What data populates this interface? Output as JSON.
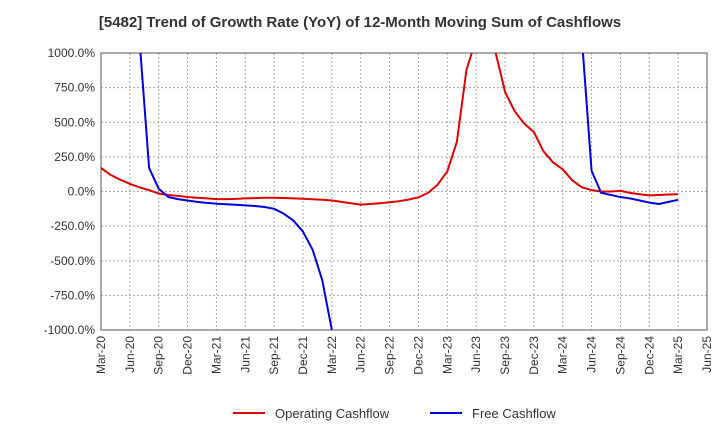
{
  "chart_data": {
    "type": "line",
    "title": "[5482]  Trend of Growth Rate (YoY) of 12-Month Moving Sum of Cashflows",
    "xlabel": "",
    "ylabel": "",
    "ylim": [
      -1000,
      1000
    ],
    "y_ticks": [
      "1000.0%",
      "750.0%",
      "500.0%",
      "250.0%",
      "0.0%",
      "-250.0%",
      "-500.0%",
      "-750.0%",
      "-1000.0%"
    ],
    "y_tick_values": [
      1000,
      750,
      500,
      250,
      0,
      -250,
      -500,
      -750,
      -1000
    ],
    "x_ticks": [
      "Mar-20",
      "Jun-20",
      "Sep-20",
      "Dec-20",
      "Mar-21",
      "Jun-21",
      "Sep-21",
      "Dec-21",
      "Mar-22",
      "Jun-22",
      "Sep-22",
      "Dec-22",
      "Mar-23",
      "Jun-23",
      "Sep-23",
      "Dec-23",
      "Mar-24",
      "Jun-24",
      "Sep-24",
      "Dec-24",
      "Mar-25",
      "Jun-25"
    ],
    "grid": true,
    "legend_position": "bottom",
    "series": [
      {
        "name": "Operating Cashflow",
        "color": "#e00000",
        "points": [
          [
            "Mar-20",
            170
          ],
          [
            "Apr-20",
            120
          ],
          [
            "May-20",
            85
          ],
          [
            "Jun-20",
            55
          ],
          [
            "Jul-20",
            30
          ],
          [
            "Aug-20",
            10
          ],
          [
            "Sep-20",
            -15
          ],
          [
            "Oct-20",
            -25
          ],
          [
            "Nov-20",
            -32
          ],
          [
            "Dec-20",
            -40
          ],
          [
            "Jan-21",
            -45
          ],
          [
            "Feb-21",
            -50
          ],
          [
            "Mar-21",
            -55
          ],
          [
            "Apr-21",
            -55
          ],
          [
            "May-21",
            -53
          ],
          [
            "Jun-21",
            -50
          ],
          [
            "Jul-21",
            -48
          ],
          [
            "Aug-21",
            -45
          ],
          [
            "Sep-21",
            -45
          ],
          [
            "Oct-21",
            -47
          ],
          [
            "Nov-21",
            -50
          ],
          [
            "Dec-21",
            -52
          ],
          [
            "Jan-22",
            -56
          ],
          [
            "Feb-22",
            -60
          ],
          [
            "Mar-22",
            -65
          ],
          [
            "Apr-22",
            -75
          ],
          [
            "May-22",
            -85
          ],
          [
            "Jun-22",
            -95
          ],
          [
            "Jul-22",
            -90
          ],
          [
            "Aug-22",
            -85
          ],
          [
            "Sep-22",
            -78
          ],
          [
            "Oct-22",
            -70
          ],
          [
            "Nov-22",
            -58
          ],
          [
            "Dec-22",
            -42
          ],
          [
            "Jan-23",
            -10
          ],
          [
            "Feb-23",
            50
          ],
          [
            "Mar-23",
            145
          ],
          [
            "Apr-23",
            360
          ],
          [
            "May-23",
            880
          ],
          [
            "Jun-23",
            1100
          ],
          [
            "Jul-23",
            1300
          ],
          [
            "Aug-23",
            1010
          ],
          [
            "Sep-23",
            720
          ],
          [
            "Oct-23",
            580
          ],
          [
            "Nov-23",
            490
          ],
          [
            "Dec-23",
            430
          ],
          [
            "Jan-24",
            290
          ],
          [
            "Feb-24",
            210
          ],
          [
            "Mar-24",
            160
          ],
          [
            "Apr-24",
            80
          ],
          [
            "May-24",
            30
          ],
          [
            "Jun-24",
            10
          ],
          [
            "Jul-24",
            0
          ],
          [
            "Aug-24",
            0
          ],
          [
            "Sep-24",
            5
          ],
          [
            "Oct-24",
            -10
          ],
          [
            "Nov-24",
            -20
          ],
          [
            "Dec-24",
            -28
          ],
          [
            "Jan-25",
            -25
          ],
          [
            "Feb-25",
            -22
          ],
          [
            "Mar-25",
            -20
          ]
        ]
      },
      {
        "name": "Free Cashflow",
        "color": "#0000dd",
        "points": [
          [
            "Jul-20",
            1100
          ],
          [
            "Aug-20",
            170
          ],
          [
            "Sep-20",
            20
          ],
          [
            "Oct-20",
            -40
          ],
          [
            "Nov-20",
            -55
          ],
          [
            "Dec-20",
            -65
          ],
          [
            "Jan-21",
            -75
          ],
          [
            "Feb-21",
            -82
          ],
          [
            "Mar-21",
            -88
          ],
          [
            "Apr-21",
            -92
          ],
          [
            "May-21",
            -96
          ],
          [
            "Jun-21",
            -100
          ],
          [
            "Jul-21",
            -105
          ],
          [
            "Aug-21",
            -112
          ],
          [
            "Sep-21",
            -125
          ],
          [
            "Oct-21",
            -160
          ],
          [
            "Nov-21",
            -210
          ],
          [
            "Dec-21",
            -290
          ],
          [
            "Jan-22",
            -420
          ],
          [
            "Feb-22",
            -640
          ],
          [
            "Mar-22",
            -1000
          ]
        ]
      },
      {
        "name": "Free Cashflow",
        "color": "#0000dd",
        "points": [
          [
            "May-24",
            1100
          ],
          [
            "Jun-24",
            150
          ],
          [
            "Jul-24",
            -10
          ],
          [
            "Aug-24",
            -25
          ],
          [
            "Sep-24",
            -40
          ],
          [
            "Oct-24",
            -50
          ],
          [
            "Nov-24",
            -65
          ],
          [
            "Dec-24",
            -80
          ],
          [
            "Jan-25",
            -90
          ],
          [
            "Feb-25",
            -75
          ],
          [
            "Mar-25",
            -60
          ]
        ]
      }
    ],
    "legend": [
      {
        "name": "Operating Cashflow",
        "color": "#e00000"
      },
      {
        "name": "Free Cashflow",
        "color": "#0000dd"
      }
    ]
  }
}
